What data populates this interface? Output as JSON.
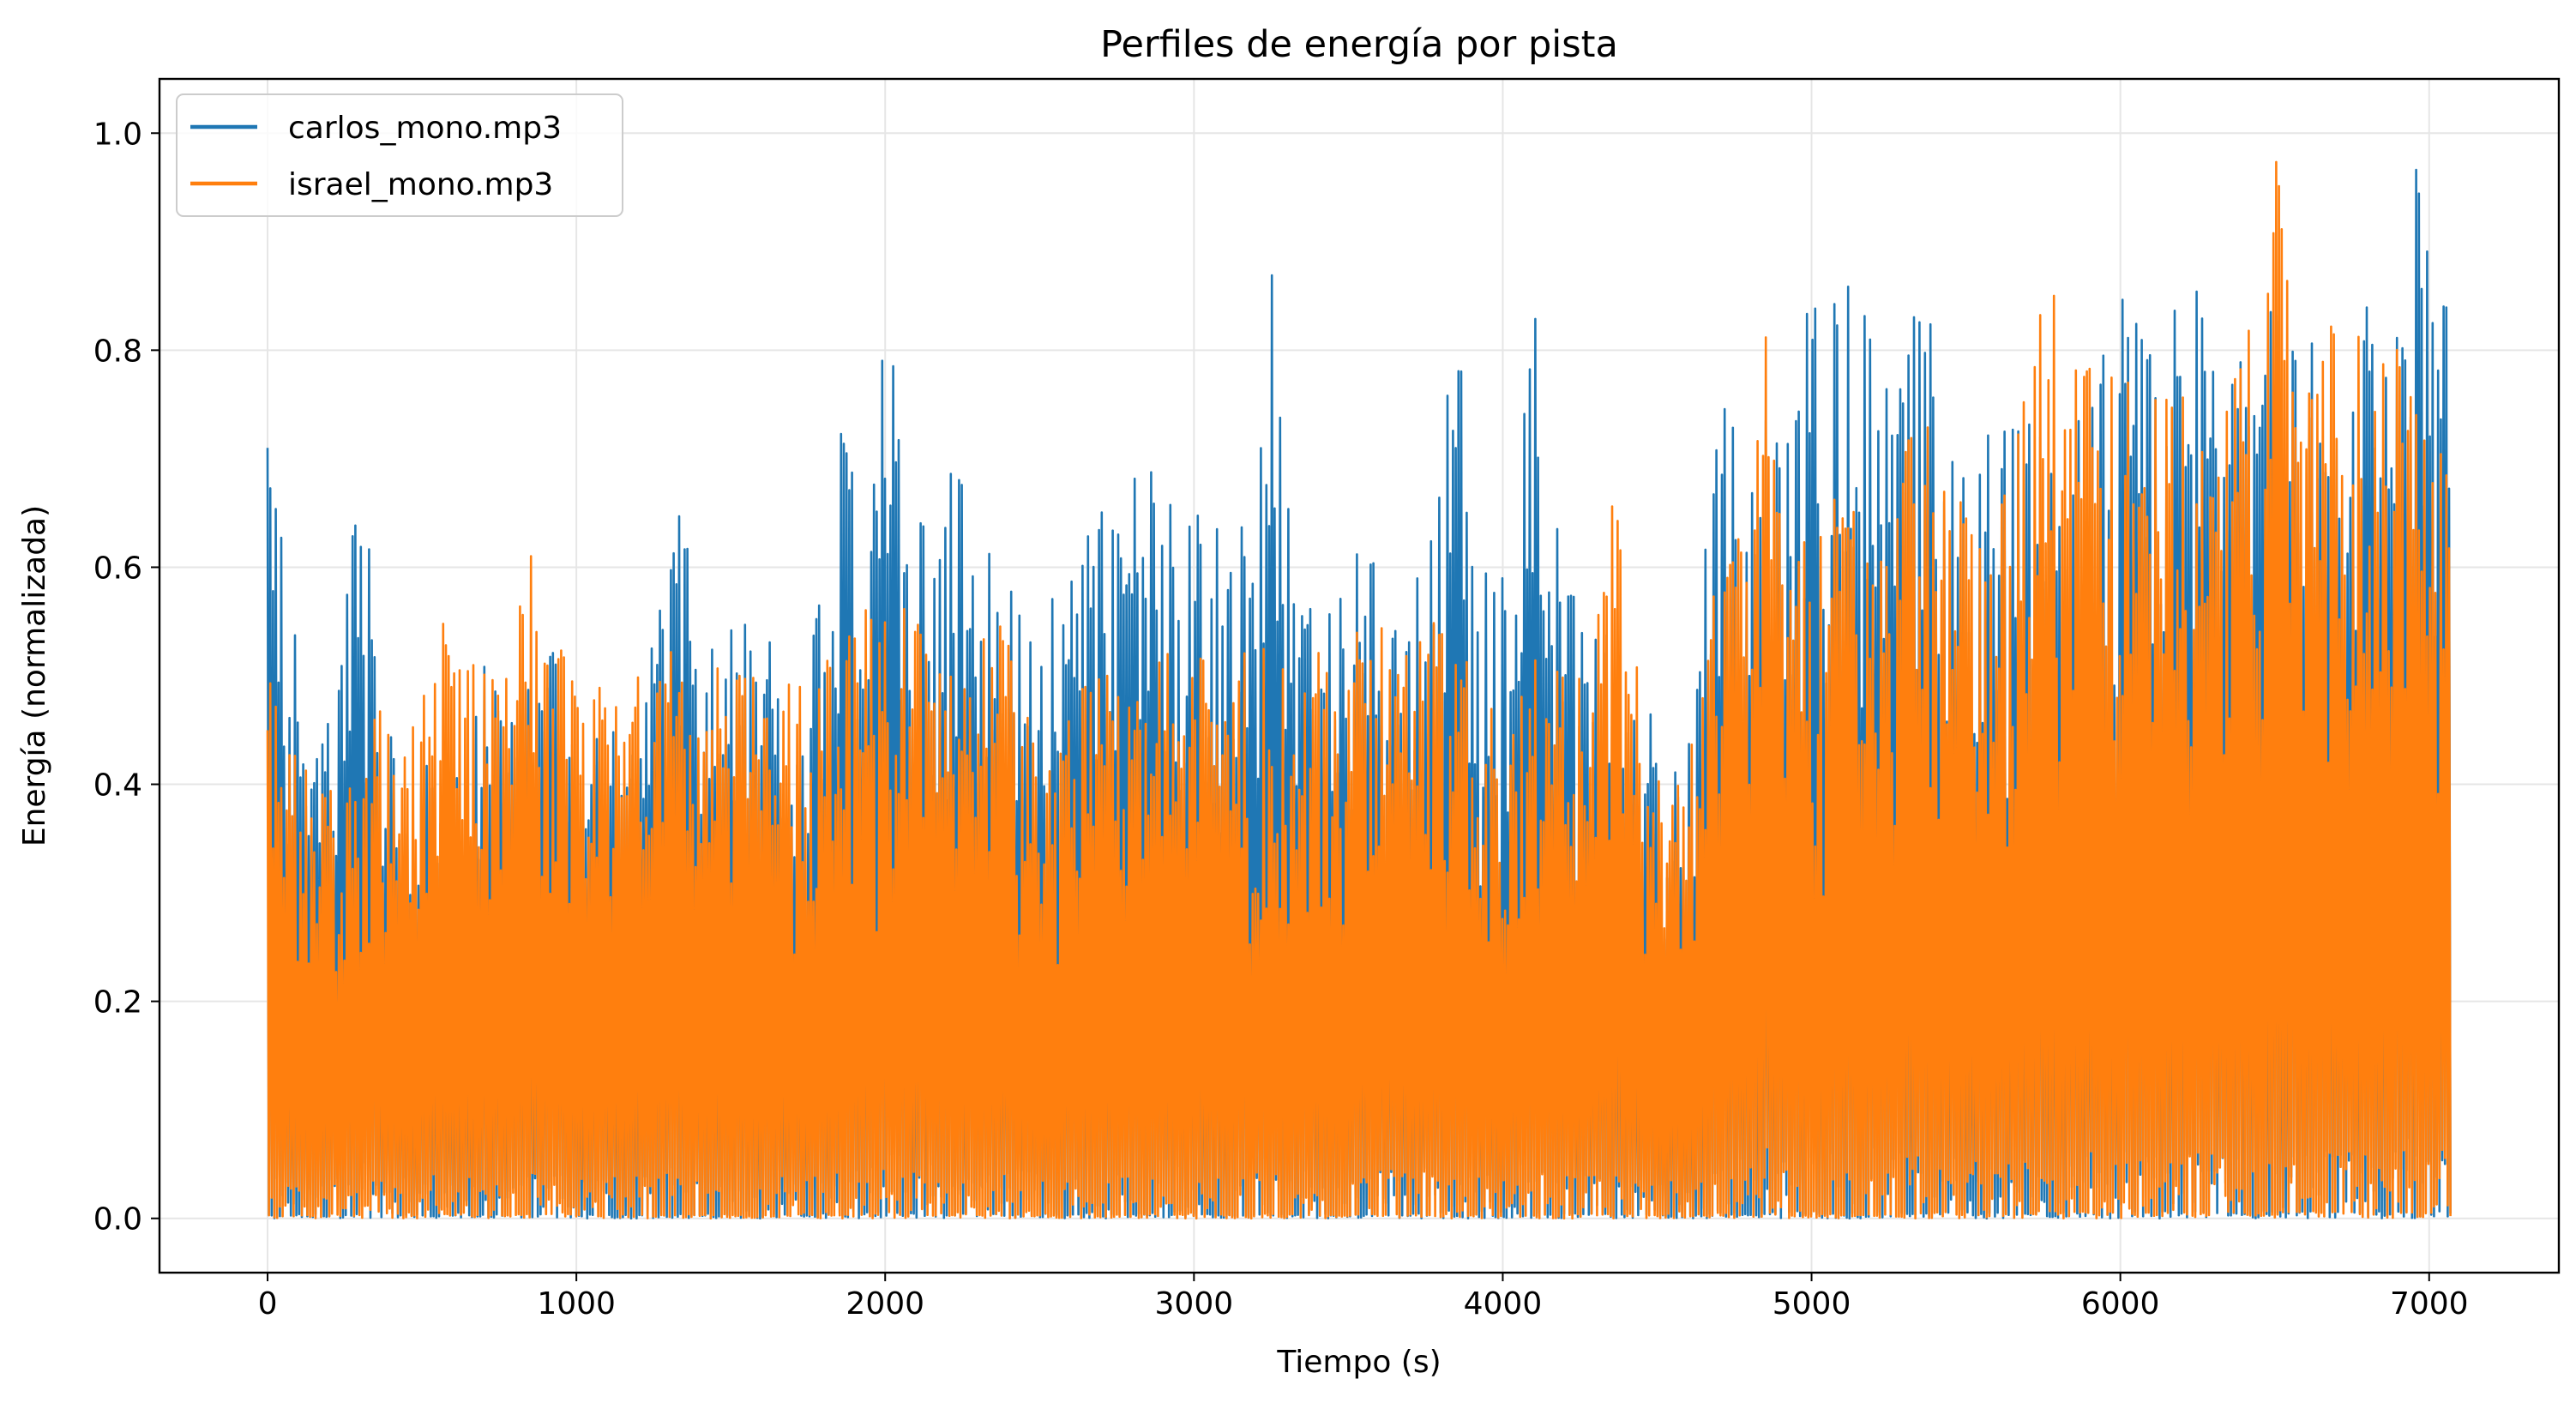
{
  "chart_data": {
    "type": "line",
    "title": "Perfiles de energía por pista",
    "xlabel": "Tiempo (s)",
    "ylabel": "Energía (normalizada)",
    "xlim": [
      -350,
      7420
    ],
    "ylim": [
      -0.05,
      1.05
    ],
    "xticks": [
      0,
      1000,
      2000,
      3000,
      4000,
      5000,
      6000,
      7000
    ],
    "yticks": [
      0.0,
      0.2,
      0.4,
      0.6,
      0.8,
      1.0
    ],
    "xtick_labels": [
      "0",
      "1000",
      "2000",
      "3000",
      "4000",
      "5000",
      "6000",
      "7000"
    ],
    "ytick_labels": [
      "0.0",
      "0.2",
      "0.4",
      "0.6",
      "0.8",
      "1.0"
    ],
    "grid": true,
    "legend_position": "top-left",
    "series": [
      {
        "name": "carlos_mono.mp3",
        "color": "#1f77b4",
        "duration": 7070,
        "envelope": [
          [
            0,
            0.71
          ],
          [
            60,
            0.6
          ],
          [
            150,
            0.43
          ],
          [
            250,
            0.55
          ],
          [
            300,
            0.71
          ],
          [
            400,
            0.5
          ],
          [
            500,
            0.42
          ],
          [
            600,
            0.4
          ],
          [
            700,
            0.52
          ],
          [
            800,
            0.45
          ],
          [
            900,
            0.55
          ],
          [
            1000,
            0.43
          ],
          [
            1100,
            0.45
          ],
          [
            1200,
            0.44
          ],
          [
            1300,
            0.67
          ],
          [
            1400,
            0.6
          ],
          [
            1500,
            0.55
          ],
          [
            1600,
            0.58
          ],
          [
            1700,
            0.47
          ],
          [
            1800,
            0.58
          ],
          [
            1850,
            0.73
          ],
          [
            1900,
            0.68
          ],
          [
            2000,
            0.84
          ],
          [
            2100,
            0.63
          ],
          [
            2200,
            0.7
          ],
          [
            2300,
            0.65
          ],
          [
            2400,
            0.58
          ],
          [
            2500,
            0.55
          ],
          [
            2600,
            0.6
          ],
          [
            2700,
            0.65
          ],
          [
            2800,
            0.68
          ],
          [
            2900,
            0.7
          ],
          [
            3000,
            0.65
          ],
          [
            3100,
            0.63
          ],
          [
            3200,
            0.67
          ],
          [
            3260,
            0.9
          ],
          [
            3300,
            0.66
          ],
          [
            3400,
            0.55
          ],
          [
            3500,
            0.62
          ],
          [
            3600,
            0.6
          ],
          [
            3700,
            0.55
          ],
          [
            3800,
            0.72
          ],
          [
            3870,
            0.87
          ],
          [
            3900,
            0.6
          ],
          [
            4000,
            0.63
          ],
          [
            4100,
            0.86
          ],
          [
            4200,
            0.6
          ],
          [
            4300,
            0.57
          ],
          [
            4400,
            0.52
          ],
          [
            4500,
            0.45
          ],
          [
            4600,
            0.43
          ],
          [
            4700,
            0.76
          ],
          [
            4800,
            0.72
          ],
          [
            4900,
            0.78
          ],
          [
            5000,
            0.85
          ],
          [
            5100,
            0.84
          ],
          [
            5170,
            0.91
          ],
          [
            5250,
            0.75
          ],
          [
            5350,
            0.87
          ],
          [
            5450,
            0.74
          ],
          [
            5550,
            0.72
          ],
          [
            5700,
            0.73
          ],
          [
            5800,
            0.76
          ],
          [
            5900,
            0.75
          ],
          [
            6000,
            0.85
          ],
          [
            6100,
            0.8
          ],
          [
            6200,
            0.92
          ],
          [
            6300,
            0.78
          ],
          [
            6400,
            0.79
          ],
          [
            6500,
            0.87
          ],
          [
            6600,
            0.8
          ],
          [
            6700,
            0.83
          ],
          [
            6800,
            0.86
          ],
          [
            6900,
            0.82
          ],
          [
            6960,
            1.0
          ],
          [
            7000,
            0.87
          ],
          [
            7050,
            0.95
          ],
          [
            7070,
            0.68
          ]
        ]
      },
      {
        "name": "israel_mono.mp3",
        "color": "#ff7f0e",
        "duration": 7070,
        "envelope": [
          [
            0,
            0.54
          ],
          [
            60,
            0.5
          ],
          [
            150,
            0.4
          ],
          [
            250,
            0.4
          ],
          [
            350,
            0.47
          ],
          [
            450,
            0.45
          ],
          [
            530,
            0.57
          ],
          [
            600,
            0.53
          ],
          [
            700,
            0.5
          ],
          [
            800,
            0.55
          ],
          [
            830,
            0.67
          ],
          [
            900,
            0.55
          ],
          [
            1000,
            0.5
          ],
          [
            1100,
            0.52
          ],
          [
            1200,
            0.5
          ],
          [
            1300,
            0.53
          ],
          [
            1400,
            0.52
          ],
          [
            1500,
            0.5
          ],
          [
            1600,
            0.5
          ],
          [
            1700,
            0.5
          ],
          [
            1800,
            0.52
          ],
          [
            1900,
            0.57
          ],
          [
            2000,
            0.58
          ],
          [
            2100,
            0.55
          ],
          [
            2200,
            0.5
          ],
          [
            2300,
            0.5
          ],
          [
            2350,
            0.6
          ],
          [
            2450,
            0.48
          ],
          [
            2600,
            0.48
          ],
          [
            2700,
            0.5
          ],
          [
            2800,
            0.5
          ],
          [
            2900,
            0.52
          ],
          [
            3000,
            0.52
          ],
          [
            3100,
            0.5
          ],
          [
            3200,
            0.55
          ],
          [
            3300,
            0.5
          ],
          [
            3400,
            0.52
          ],
          [
            3500,
            0.55
          ],
          [
            3600,
            0.58
          ],
          [
            3700,
            0.55
          ],
          [
            3800,
            0.58
          ],
          [
            3900,
            0.5
          ],
          [
            4000,
            0.5
          ],
          [
            4100,
            0.52
          ],
          [
            4200,
            0.5
          ],
          [
            4300,
            0.55
          ],
          [
            4390,
            0.73
          ],
          [
            4450,
            0.45
          ],
          [
            4550,
            0.45
          ],
          [
            4650,
            0.48
          ],
          [
            4700,
            0.67
          ],
          [
            4800,
            0.6
          ],
          [
            4850,
            0.85
          ],
          [
            4900,
            0.65
          ],
          [
            5000,
            0.62
          ],
          [
            5100,
            0.68
          ],
          [
            5200,
            0.6
          ],
          [
            5300,
            0.7
          ],
          [
            5350,
            0.76
          ],
          [
            5450,
            0.65
          ],
          [
            5550,
            0.68
          ],
          [
            5650,
            0.68
          ],
          [
            5760,
            0.94
          ],
          [
            5800,
            0.8
          ],
          [
            5900,
            0.82
          ],
          [
            6000,
            0.78
          ],
          [
            6100,
            0.75
          ],
          [
            6200,
            0.78
          ],
          [
            6300,
            0.75
          ],
          [
            6400,
            0.79
          ],
          [
            6520,
            1.0
          ],
          [
            6560,
            0.75
          ],
          [
            6650,
            0.94
          ],
          [
            6700,
            0.8
          ],
          [
            6800,
            0.87
          ],
          [
            6900,
            0.8
          ],
          [
            7000,
            0.75
          ],
          [
            7070,
            0.84
          ]
        ]
      }
    ]
  }
}
